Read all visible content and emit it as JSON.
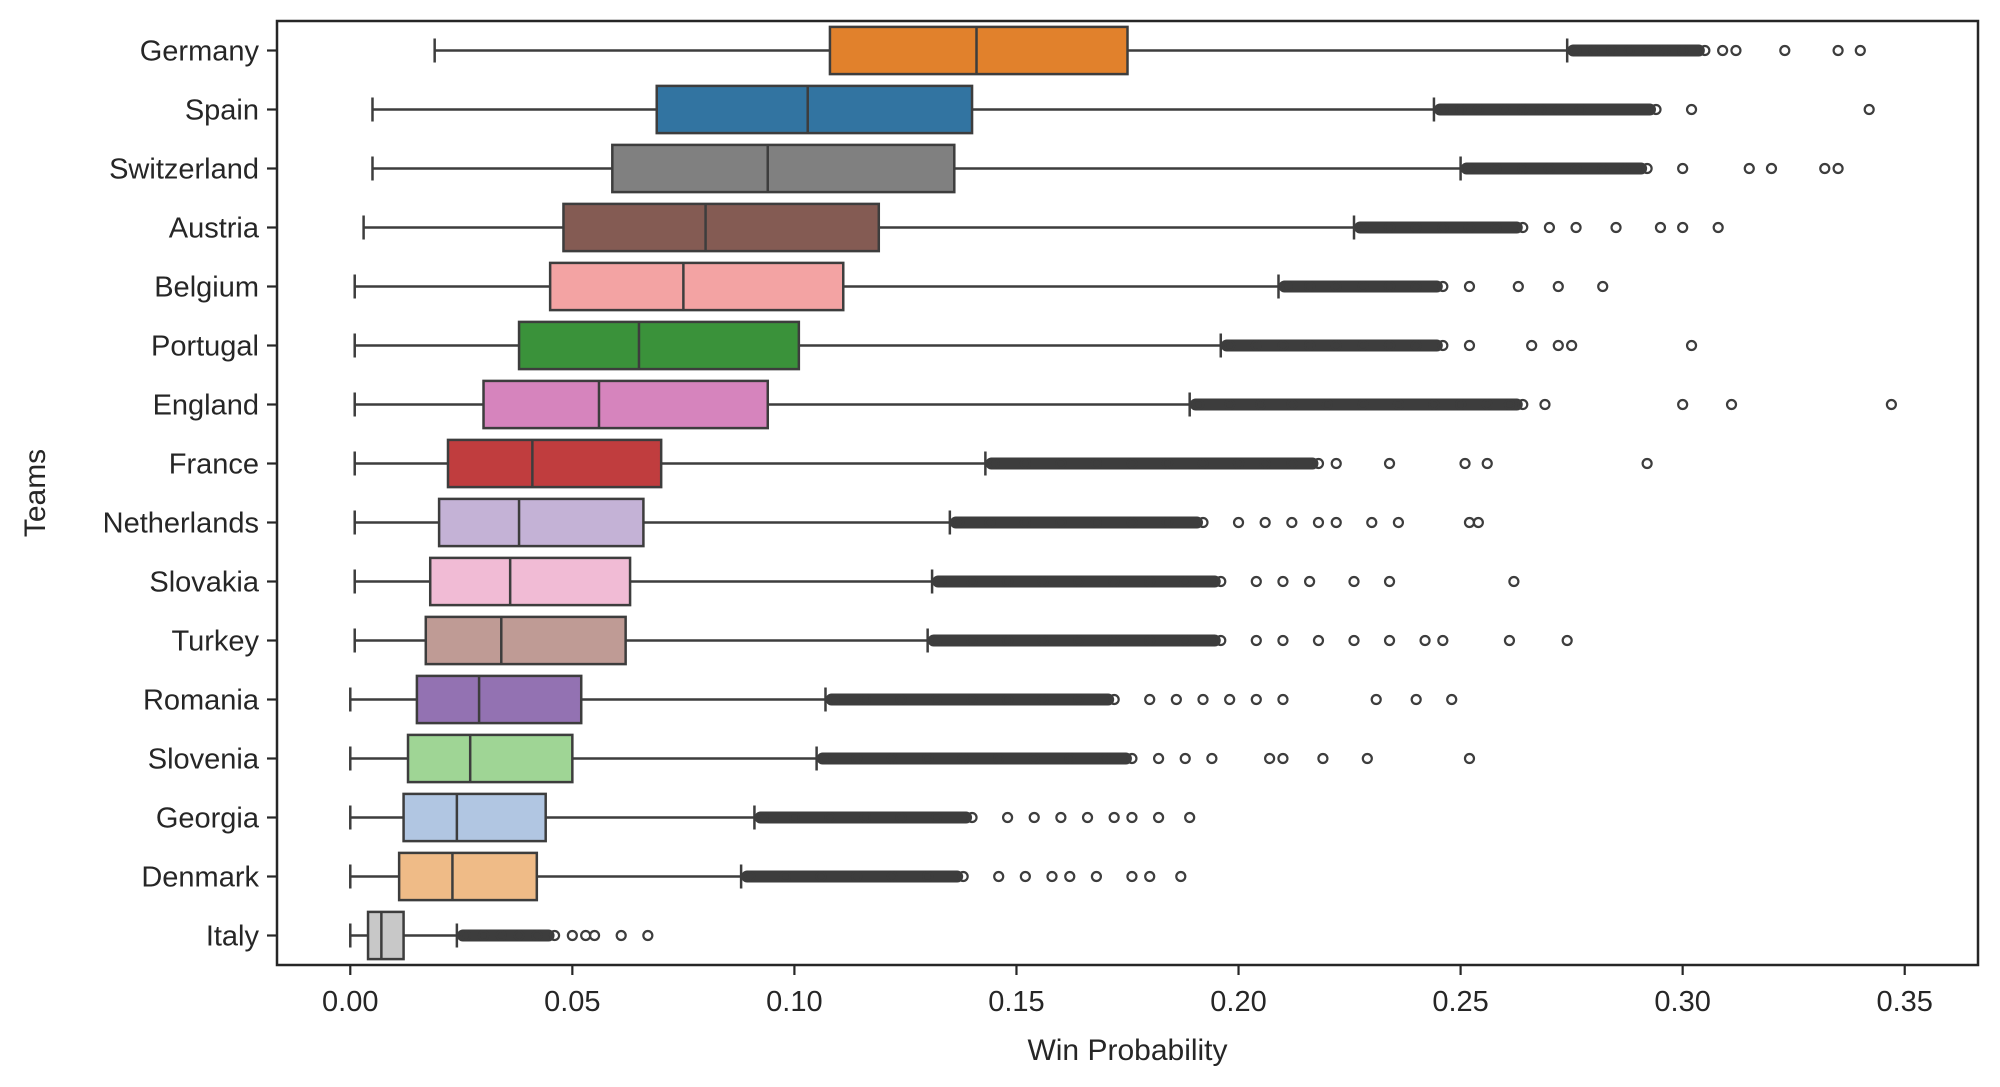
{
  "chart_data": {
    "type": "boxplot",
    "orientation": "horizontal",
    "title": "",
    "xlabel": "Win Probability",
    "ylabel": "Teams",
    "xlim": [
      -0.0165,
      0.3665
    ],
    "xticks": [
      0.0,
      0.05,
      0.1,
      0.15,
      0.2,
      0.25,
      0.3,
      0.35
    ],
    "xtick_labels": [
      "0.00",
      "0.05",
      "0.10",
      "0.15",
      "0.20",
      "0.25",
      "0.30",
      "0.35"
    ],
    "grid": false,
    "legend": "none",
    "categories": [
      "Germany",
      "Spain",
      "Switzerland",
      "Austria",
      "Belgium",
      "Portugal",
      "England",
      "France",
      "Netherlands",
      "Slovakia",
      "Turkey",
      "Romania",
      "Slovenia",
      "Georgia",
      "Denmark",
      "Italy"
    ],
    "series": [
      {
        "name": "Germany",
        "color": "#e1812c",
        "whisker_low": 0.019,
        "q1": 0.108,
        "median": 0.141,
        "q3": 0.175,
        "whisker_high": 0.274,
        "outlier_max": 0.34,
        "outliers": [
          0.276,
          0.28,
          0.284,
          0.288,
          0.292,
          0.296,
          0.3,
          0.305,
          0.309,
          0.312,
          0.323,
          0.335,
          0.34
        ]
      },
      {
        "name": "Spain",
        "color": "#3274a1",
        "whisker_low": 0.005,
        "q1": 0.069,
        "median": 0.103,
        "q3": 0.14,
        "whisker_high": 0.244,
        "outlier_max": 0.342,
        "outliers": [
          0.246,
          0.25,
          0.254,
          0.26,
          0.264,
          0.268,
          0.272,
          0.277,
          0.294,
          0.302,
          0.342
        ]
      },
      {
        "name": "Switzerland",
        "color": "#808080",
        "whisker_low": 0.005,
        "q1": 0.059,
        "median": 0.094,
        "q3": 0.136,
        "whisker_high": 0.25,
        "outlier_max": 0.335,
        "outliers": [
          0.252,
          0.258,
          0.264,
          0.27,
          0.276,
          0.282,
          0.287,
          0.292,
          0.3,
          0.315,
          0.32,
          0.332,
          0.335
        ]
      },
      {
        "name": "Austria",
        "color": "#845b53",
        "whisker_low": 0.003,
        "q1": 0.048,
        "median": 0.08,
        "q3": 0.119,
        "whisker_high": 0.226,
        "outlier_max": 0.308,
        "outliers": [
          0.228,
          0.234,
          0.24,
          0.246,
          0.252,
          0.258,
          0.264,
          0.27,
          0.276,
          0.285,
          0.295,
          0.3,
          0.308
        ]
      },
      {
        "name": "Belgium",
        "color": "#f3a3a3",
        "whisker_low": 0.001,
        "q1": 0.045,
        "median": 0.075,
        "q3": 0.111,
        "whisker_high": 0.209,
        "outlier_max": 0.282,
        "outliers": [
          0.211,
          0.216,
          0.222,
          0.228,
          0.234,
          0.24,
          0.246,
          0.252,
          0.263,
          0.272,
          0.282
        ]
      },
      {
        "name": "Portugal",
        "color": "#3a923a",
        "whisker_low": 0.001,
        "q1": 0.038,
        "median": 0.065,
        "q3": 0.101,
        "whisker_high": 0.196,
        "outlier_max": 0.302,
        "outliers": [
          0.198,
          0.204,
          0.21,
          0.216,
          0.222,
          0.228,
          0.234,
          0.24,
          0.246,
          0.252,
          0.266,
          0.272,
          0.275,
          0.302
        ]
      },
      {
        "name": "England",
        "color": "#d684bd",
        "whisker_low": 0.001,
        "q1": 0.03,
        "median": 0.056,
        "q3": 0.094,
        "whisker_high": 0.189,
        "outlier_max": 0.347,
        "outliers": [
          0.191,
          0.198,
          0.205,
          0.212,
          0.22,
          0.228,
          0.236,
          0.244,
          0.25,
          0.256,
          0.261,
          0.264,
          0.269,
          0.3,
          0.311,
          0.347
        ]
      },
      {
        "name": "France",
        "color": "#c03d3e",
        "whisker_low": 0.001,
        "q1": 0.022,
        "median": 0.041,
        "q3": 0.07,
        "whisker_high": 0.143,
        "outlier_max": 0.292,
        "outliers": [
          0.145,
          0.152,
          0.16,
          0.168,
          0.176,
          0.184,
          0.192,
          0.2,
          0.206,
          0.212,
          0.218,
          0.222,
          0.234,
          0.251,
          0.256,
          0.292
        ]
      },
      {
        "name": "Netherlands",
        "color": "#c4b2d6",
        "whisker_low": 0.001,
        "q1": 0.02,
        "median": 0.038,
        "q3": 0.066,
        "whisker_high": 0.135,
        "outlier_max": 0.254,
        "outliers": [
          0.137,
          0.144,
          0.152,
          0.16,
          0.168,
          0.176,
          0.184,
          0.192,
          0.2,
          0.206,
          0.212,
          0.218,
          0.222,
          0.23,
          0.236,
          0.252,
          0.254
        ]
      },
      {
        "name": "Slovakia",
        "color": "#f1bbd5",
        "whisker_low": 0.001,
        "q1": 0.018,
        "median": 0.036,
        "q3": 0.063,
        "whisker_high": 0.131,
        "outlier_max": 0.262,
        "outliers": [
          0.133,
          0.14,
          0.148,
          0.156,
          0.164,
          0.172,
          0.18,
          0.188,
          0.196,
          0.204,
          0.21,
          0.216,
          0.226,
          0.234,
          0.262
        ]
      },
      {
        "name": "Turkey",
        "color": "#bf9b95",
        "whisker_low": 0.001,
        "q1": 0.017,
        "median": 0.034,
        "q3": 0.062,
        "whisker_high": 0.13,
        "outlier_max": 0.274,
        "outliers": [
          0.132,
          0.14,
          0.148,
          0.156,
          0.164,
          0.172,
          0.18,
          0.188,
          0.196,
          0.204,
          0.21,
          0.218,
          0.226,
          0.234,
          0.242,
          0.246,
          0.261,
          0.274
        ]
      },
      {
        "name": "Romania",
        "color": "#9372b2",
        "whisker_low": 0.0,
        "q1": 0.015,
        "median": 0.029,
        "q3": 0.052,
        "whisker_high": 0.107,
        "outlier_max": 0.248,
        "outliers": [
          0.109,
          0.116,
          0.124,
          0.132,
          0.14,
          0.148,
          0.156,
          0.164,
          0.172,
          0.18,
          0.186,
          0.192,
          0.198,
          0.204,
          0.21,
          0.231,
          0.24,
          0.248
        ]
      },
      {
        "name": "Slovenia",
        "color": "#9fd595",
        "whisker_low": 0.0,
        "q1": 0.013,
        "median": 0.027,
        "q3": 0.05,
        "whisker_high": 0.105,
        "outlier_max": 0.252,
        "outliers": [
          0.107,
          0.114,
          0.122,
          0.13,
          0.138,
          0.146,
          0.154,
          0.162,
          0.17,
          0.176,
          0.182,
          0.188,
          0.194,
          0.207,
          0.21,
          0.219,
          0.229,
          0.252
        ]
      },
      {
        "name": "Georgia",
        "color": "#b1c6e2",
        "whisker_low": 0.0,
        "q1": 0.012,
        "median": 0.024,
        "q3": 0.044,
        "whisker_high": 0.091,
        "outlier_max": 0.189,
        "outliers": [
          0.093,
          0.1,
          0.108,
          0.116,
          0.124,
          0.132,
          0.14,
          0.148,
          0.154,
          0.16,
          0.166,
          0.172,
          0.176,
          0.182,
          0.189
        ]
      },
      {
        "name": "Denmark",
        "color": "#efbb87",
        "whisker_low": 0.0,
        "q1": 0.011,
        "median": 0.023,
        "q3": 0.042,
        "whisker_high": 0.088,
        "outlier_max": 0.187,
        "outliers": [
          0.09,
          0.098,
          0.106,
          0.114,
          0.122,
          0.13,
          0.138,
          0.146,
          0.152,
          0.158,
          0.162,
          0.168,
          0.176,
          0.18,
          0.187
        ]
      },
      {
        "name": "Italy",
        "color": "#c8c8c8",
        "whisker_low": 0.0,
        "q1": 0.004,
        "median": 0.007,
        "q3": 0.012,
        "whisker_high": 0.024,
        "outlier_max": 0.067,
        "outliers": [
          0.026,
          0.03,
          0.034,
          0.038,
          0.042,
          0.046,
          0.05,
          0.053,
          0.055,
          0.061,
          0.067
        ]
      }
    ]
  }
}
